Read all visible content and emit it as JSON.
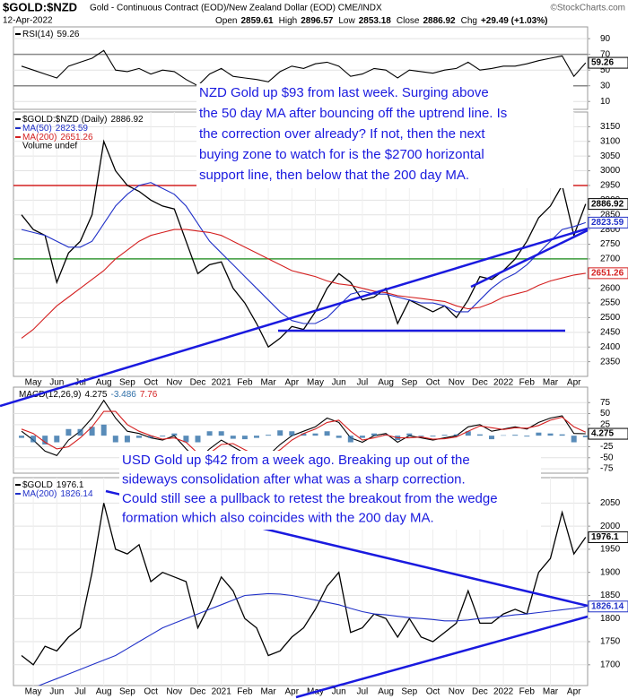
{
  "header": {
    "symbol": "$GOLD:$NZD",
    "description": "Gold - Continuous Contract (EOD)/New Zealand Dollar (EOD) CME/INDX",
    "credit": "©StockCharts.com",
    "date": "12-Apr-2022",
    "stats": [
      {
        "label": "Open",
        "value": "2859.61"
      },
      {
        "label": "High",
        "value": "2896.57"
      },
      {
        "label": "Low",
        "value": "2853.18"
      },
      {
        "label": "Close",
        "value": "2886.92"
      },
      {
        "label": "Chg",
        "value": "+29.49 (+1.03%)"
      }
    ]
  },
  "chart_data": [
    {
      "type": "line",
      "ylim": [
        0,
        105
      ],
      "yticks": [
        10,
        30,
        50,
        70,
        90
      ],
      "grid": true,
      "legend": "rows",
      "hlines": [
        {
          "value": 70,
          "color": "#888"
        },
        {
          "value": 30,
          "color": "#888"
        }
      ],
      "series": [
        {
          "name": "RSI(14)",
          "color": "#000",
          "tag": true,
          "values": [
            55,
            50,
            45,
            40,
            55,
            60,
            65,
            75,
            50,
            48,
            52,
            45,
            50,
            48,
            38,
            30,
            45,
            52,
            42,
            40,
            38,
            35,
            48,
            55,
            52,
            58,
            60,
            55,
            42,
            45,
            52,
            50,
            40,
            50,
            48,
            46,
            50,
            52,
            60,
            50,
            52,
            55,
            55,
            58,
            62,
            65,
            68,
            42,
            59.26
          ]
        }
      ]
    },
    {
      "type": "line",
      "ylim": [
        2300,
        3200
      ],
      "yticks": [
        2350,
        2400,
        2450,
        2500,
        2550,
        2600,
        2650,
        2700,
        2750,
        2800,
        2850,
        2900,
        2950,
        3000,
        3050,
        3100,
        3150
      ],
      "grid": true,
      "legend": "rows",
      "categories": [
        null,
        "May",
        null,
        "Jun",
        null,
        "Jul",
        null,
        "Aug",
        null,
        "Sep",
        null,
        "Oct",
        null,
        "Nov",
        null,
        "Dec",
        null,
        "2021",
        null,
        "Feb",
        null,
        "Mar",
        null,
        "Apr",
        null,
        "May",
        null,
        "Jun",
        null,
        "Jul",
        null,
        "Aug",
        null,
        "Sep",
        null,
        "Oct",
        null,
        "Nov",
        null,
        "Dec",
        null,
        "2022",
        null,
        "Feb",
        null,
        "Mar",
        null,
        "Apr",
        null
      ],
      "hlines": [
        {
          "value": 2950,
          "color": "#d42020"
        },
        {
          "value": 2700,
          "color": "#3a9a3a"
        }
      ],
      "notes": [
        "Volume undef"
      ],
      "annotation": [
        "NZD Gold up $93 from last week. Surging above",
        "the 50 day MA after bouncing off the uptrend line. Is",
        "the correction over already? If not, then the next",
        "buying zone to watch for is the $2700 horizontal",
        "support line, then below that the 200 day MA."
      ],
      "series": [
        {
          "name": "$GOLD:$NZD (Daily)",
          "color": "#000",
          "tag": true,
          "values": [
            2850,
            2800,
            2780,
            2620,
            2720,
            2760,
            2850,
            3100,
            3000,
            2950,
            2930,
            2900,
            2880,
            2870,
            2760,
            2650,
            2680,
            2690,
            2600,
            2550,
            2480,
            2400,
            2430,
            2470,
            2460,
            2520,
            2600,
            2650,
            2620,
            2560,
            2570,
            2600,
            2480,
            2560,
            2540,
            2520,
            2540,
            2500,
            2560,
            2640,
            2630,
            2660,
            2700,
            2760,
            2840,
            2880,
            2950,
            2780,
            2886.92
          ]
        },
        {
          "name": "MA(50)",
          "color": "#2030c8",
          "tag": true,
          "values": [
            2800,
            2790,
            2780,
            2760,
            2740,
            2740,
            2760,
            2820,
            2880,
            2920,
            2950,
            2960,
            2940,
            2920,
            2880,
            2820,
            2760,
            2720,
            2680,
            2640,
            2600,
            2560,
            2520,
            2490,
            2480,
            2480,
            2500,
            2540,
            2580,
            2590,
            2580,
            2580,
            2570,
            2560,
            2550,
            2550,
            2540,
            2520,
            2520,
            2560,
            2600,
            2630,
            2650,
            2680,
            2720,
            2760,
            2800,
            2810,
            2823.59
          ]
        },
        {
          "name": "MA(200)",
          "color": "#d42020",
          "tag": true,
          "values": [
            2430,
            2460,
            2500,
            2540,
            2570,
            2600,
            2630,
            2660,
            2700,
            2730,
            2760,
            2780,
            2790,
            2800,
            2800,
            2795,
            2790,
            2780,
            2760,
            2740,
            2720,
            2700,
            2680,
            2660,
            2650,
            2640,
            2625,
            2615,
            2610,
            2600,
            2590,
            2585,
            2575,
            2570,
            2565,
            2560,
            2555,
            2540,
            2530,
            2535,
            2550,
            2570,
            2580,
            2590,
            2610,
            2625,
            2635,
            2645,
            2651.26
          ]
        }
      ]
    },
    {
      "type": "line",
      "ylim": [
        -85,
        110
      ],
      "yticks": [
        -75,
        -50,
        -25,
        25,
        50,
        75
      ],
      "grid": true,
      "legend": "inline",
      "series": [
        {
          "name": "MACD(12,26,9)",
          "color": "#000",
          "tag": true,
          "values": [
            10,
            -10,
            -35,
            -45,
            -10,
            10,
            40,
            80,
            40,
            10,
            5,
            -5,
            -10,
            0,
            -30,
            -55,
            -30,
            -10,
            -25,
            -40,
            -50,
            -45,
            -20,
            0,
            10,
            20,
            40,
            30,
            -5,
            -15,
            0,
            5,
            -15,
            0,
            -5,
            -10,
            -5,
            0,
            20,
            25,
            10,
            15,
            20,
            15,
            30,
            40,
            45,
            5,
            4.275
          ]
        },
        {
          "style": "bar",
          "color": "#2f6fa8",
          "values": [
            -5,
            -15,
            -20,
            -15,
            15,
            15,
            20,
            25,
            -15,
            -15,
            -5,
            -5,
            -2,
            5,
            -15,
            -15,
            10,
            10,
            -7,
            -8,
            -5,
            2,
            12,
            10,
            5,
            5,
            10,
            -5,
            -15,
            -5,
            5,
            3,
            -10,
            5,
            -2,
            -2,
            2,
            3,
            10,
            3,
            -8,
            1,
            2,
            -2,
            7,
            5,
            3,
            -15,
            -3.486
          ]
        },
        {
          "color": "#d42020",
          "values": [
            15,
            5,
            -15,
            -30,
            -25,
            -5,
            20,
            55,
            55,
            25,
            10,
            0,
            -8,
            -5,
            -15,
            -40,
            -40,
            -20,
            -18,
            -32,
            -45,
            -47,
            -32,
            -10,
            5,
            15,
            30,
            35,
            10,
            -10,
            -5,
            2,
            -5,
            -5,
            -3,
            -8,
            -7,
            -3,
            10,
            22,
            18,
            14,
            18,
            17,
            23,
            35,
            42,
            20,
            7.76
          ]
        }
      ]
    },
    {
      "type": "line",
      "ylim": [
        1655,
        2105
      ],
      "yticks": [
        1700,
        1750,
        1800,
        1850,
        1900,
        1950,
        2000,
        2050
      ],
      "grid": true,
      "legend": "rows",
      "categories": [
        null,
        "May",
        null,
        "Jun",
        null,
        "Jul",
        null,
        "Aug",
        null,
        "Sep",
        null,
        "Oct",
        null,
        "Nov",
        null,
        "Dec",
        null,
        "2021",
        null,
        "Feb",
        null,
        "Mar",
        null,
        "Apr",
        null,
        "May",
        null,
        "Jun",
        null,
        "Jul",
        null,
        "Aug",
        null,
        "Sep",
        null,
        "Oct",
        null,
        "Nov",
        null,
        "Dec",
        null,
        "2022",
        null,
        "Feb",
        null,
        "Mar",
        null,
        "Apr",
        null
      ],
      "annotation": [
        "USD Gold up $42 from a week ago. Breaking up out of the",
        "sideways consolidation after what was a sharp correction.",
        "Could still see a pullback to retest the breakout from the wedge",
        "formation which also coincides with the 200 day MA."
      ],
      "series": [
        {
          "name": "$GOLD",
          "color": "#000",
          "tag": true,
          "values": [
            1720,
            1700,
            1740,
            1730,
            1760,
            1780,
            1900,
            2050,
            1950,
            1940,
            1960,
            1880,
            1900,
            1890,
            1880,
            1780,
            1830,
            1890,
            1860,
            1800,
            1780,
            1720,
            1730,
            1760,
            1780,
            1820,
            1870,
            1900,
            1770,
            1780,
            1810,
            1800,
            1760,
            1800,
            1760,
            1750,
            1770,
            1790,
            1860,
            1790,
            1790,
            1810,
            1820,
            1810,
            1900,
            1930,
            2030,
            1940,
            1976.1
          ]
        },
        {
          "name": "MA(200)",
          "color": "#2030c8",
          "tag": true,
          "values": [
            1640,
            1650,
            1660,
            1670,
            1680,
            1690,
            1700,
            1710,
            1720,
            1735,
            1750,
            1765,
            1780,
            1790,
            1800,
            1810,
            1820,
            1830,
            1840,
            1850,
            1852,
            1854,
            1853,
            1850,
            1845,
            1840,
            1835,
            1830,
            1822,
            1815,
            1810,
            1808,
            1805,
            1802,
            1800,
            1798,
            1795,
            1795,
            1797,
            1800,
            1802,
            1805,
            1808,
            1810,
            1813,
            1816,
            1819,
            1822,
            1826.14
          ]
        }
      ]
    }
  ]
}
